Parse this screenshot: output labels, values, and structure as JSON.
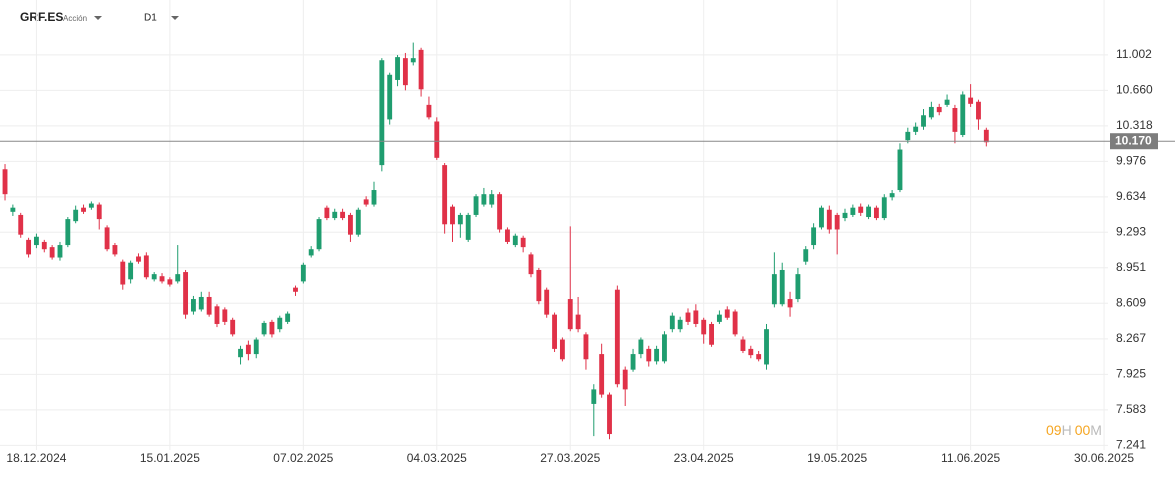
{
  "header": {
    "symbol": "GRF.ES",
    "kind": "Acción",
    "timeframe": "D1"
  },
  "countdown": {
    "hours": "09",
    "h": "H",
    "minutes": "00",
    "m": "M"
  },
  "chart_data": {
    "type": "candlestick",
    "up_color": "#1f9d6f",
    "down_color": "#e03148",
    "grid": true,
    "open": [
      9.9,
      9.49,
      9.46,
      9.22,
      9.17,
      9.2,
      9.15,
      9.05,
      9.17,
      9.4,
      9.53,
      9.53,
      9.56,
      9.34,
      9.17,
      9.01,
      8.84,
      9.06,
      9.07,
      8.84,
      8.87,
      8.84,
      8.82,
      8.91,
      8.53,
      8.55,
      8.67,
      8.58,
      8.55,
      8.45,
      8.09,
      8.21,
      8.12,
      8.31,
      8.43,
      8.36,
      8.43,
      8.76,
      8.82,
      9.07,
      9.13,
      9.53,
      9.43,
      9.49,
      9.46,
      9.27,
      9.61,
      9.56,
      9.94,
      10.38,
      10.76,
      10.97,
      10.93,
      11.05,
      10.52,
      10.36,
      9.94,
      9.54,
      9.37,
      9.22,
      9.46,
      9.56,
      9.56,
      9.66,
      9.32,
      9.17,
      9.24,
      9.08,
      8.93,
      8.74,
      8.5,
      8.26,
      8.65,
      8.5,
      8.31,
      7.64,
      8.12,
      7.73,
      8.74,
      7.97,
      7.97,
      8.12,
      8.17,
      8.05,
      8.05,
      8.36,
      8.36,
      8.52,
      8.54,
      8.45,
      8.41,
      8.43,
      8.55,
      8.53,
      8.26,
      8.17,
      8.12,
      8.02,
      8.6,
      8.6,
      8.65,
      8.65,
      9.01,
      9.17,
      9.34,
      9.51,
      9.46,
      9.43,
      9.46,
      9.54,
      9.44,
      9.53,
      9.43,
      9.63,
      9.7,
      10.18,
      10.26,
      10.31,
      10.4,
      10.5,
      10.52,
      10.49,
      10.23,
      10.59,
      10.55,
      10.28
    ],
    "high": [
      9.95,
      9.56,
      9.48,
      9.24,
      9.28,
      9.22,
      9.17,
      9.2,
      9.44,
      9.55,
      9.56,
      9.59,
      9.58,
      9.36,
      9.19,
      9.03,
      9.02,
      9.09,
      9.1,
      8.91,
      8.9,
      8.86,
      9.17,
      8.93,
      8.68,
      8.72,
      8.72,
      8.6,
      8.57,
      8.47,
      8.2,
      8.25,
      8.28,
      8.44,
      8.45,
      8.49,
      8.53,
      8.78,
      9.0,
      9.16,
      9.44,
      9.55,
      9.52,
      9.52,
      9.48,
      9.53,
      9.64,
      9.78,
      10.97,
      10.83,
      11.0,
      11.02,
      11.12,
      11.07,
      10.6,
      10.4,
      9.96,
      9.56,
      9.48,
      9.48,
      9.66,
      9.72,
      9.7,
      9.68,
      9.34,
      9.28,
      9.26,
      9.1,
      8.95,
      8.76,
      8.52,
      8.28,
      9.35,
      8.67,
      8.33,
      7.83,
      8.22,
      7.75,
      8.78,
      8.0,
      8.17,
      8.28,
      8.2,
      8.2,
      8.34,
      8.52,
      8.48,
      8.56,
      8.6,
      8.47,
      8.43,
      8.54,
      8.58,
      8.55,
      8.29,
      8.2,
      8.15,
      8.41,
      9.1,
      9.0,
      8.72,
      8.95,
      9.16,
      9.38,
      9.55,
      9.55,
      9.48,
      9.52,
      9.56,
      9.57,
      9.56,
      9.55,
      9.66,
      9.7,
      10.15,
      10.3,
      10.35,
      10.48,
      10.55,
      10.53,
      10.62,
      10.52,
      10.65,
      10.72,
      10.57,
      10.3
    ],
    "low": [
      9.6,
      9.45,
      9.24,
      9.05,
      9.14,
      9.1,
      9.03,
      9.02,
      9.15,
      9.38,
      9.47,
      9.51,
      9.32,
      9.11,
      9.06,
      8.74,
      8.8,
      8.99,
      8.84,
      8.82,
      8.8,
      8.77,
      8.8,
      8.46,
      8.5,
      8.53,
      8.48,
      8.38,
      8.4,
      8.29,
      8.02,
      8.06,
      8.08,
      8.29,
      8.28,
      8.33,
      8.41,
      8.68,
      8.8,
      9.05,
      9.11,
      9.41,
      9.41,
      9.41,
      9.2,
      9.25,
      9.54,
      9.54,
      9.88,
      10.33,
      10.7,
      10.66,
      10.9,
      10.6,
      10.38,
      9.99,
      9.28,
      9.2,
      9.24,
      9.2,
      9.44,
      9.54,
      9.53,
      9.29,
      9.18,
      9.15,
      9.1,
      8.86,
      8.6,
      8.47,
      8.14,
      8.05,
      8.34,
      8.33,
      7.97,
      7.33,
      7.7,
      7.3,
      7.8,
      7.62,
      7.95,
      8.08,
      8.0,
      8.02,
      8.03,
      8.33,
      8.33,
      8.4,
      8.38,
      8.22,
      8.19,
      8.41,
      8.45,
      8.29,
      8.13,
      8.08,
      8.05,
      7.97,
      8.57,
      8.58,
      8.48,
      8.62,
      8.98,
      9.13,
      9.32,
      9.28,
      9.08,
      9.4,
      9.44,
      9.45,
      9.42,
      9.41,
      9.41,
      9.6,
      9.68,
      10.15,
      10.23,
      10.28,
      10.38,
      10.42,
      10.5,
      10.15,
      10.21,
      10.5,
      10.28,
      10.12
    ],
    "close": [
      9.66,
      9.53,
      9.27,
      9.08,
      9.25,
      9.13,
      9.05,
      9.17,
      9.42,
      9.51,
      9.49,
      9.57,
      9.42,
      9.13,
      9.08,
      8.79,
      9.0,
      9.01,
      8.86,
      8.89,
      8.82,
      8.79,
      8.89,
      8.5,
      8.65,
      8.67,
      8.5,
      8.41,
      8.43,
      8.31,
      8.17,
      8.12,
      8.26,
      8.42,
      8.31,
      8.47,
      8.51,
      8.72,
      8.98,
      9.13,
      9.42,
      9.43,
      9.49,
      9.43,
      9.27,
      9.51,
      9.56,
      9.7,
      10.95,
      10.81,
      10.98,
      10.71,
      10.97,
      10.67,
      10.4,
      10.01,
      9.37,
      9.37,
      9.46,
      9.46,
      9.64,
      9.66,
      9.66,
      9.32,
      9.2,
      9.26,
      9.15,
      8.89,
      8.63,
      8.5,
      8.17,
      8.07,
      8.36,
      8.36,
      8.07,
      7.78,
      7.73,
      7.35,
      7.83,
      7.78,
      8.12,
      8.26,
      8.05,
      8.17,
      8.31,
      8.49,
      8.45,
      8.43,
      8.41,
      8.31,
      8.21,
      8.5,
      8.47,
      8.31,
      8.15,
      8.11,
      8.07,
      8.36,
      8.89,
      8.93,
      8.57,
      8.89,
      9.13,
      9.34,
      9.53,
      9.32,
      9.32,
      9.48,
      9.53,
      9.48,
      9.54,
      9.43,
      9.63,
      9.67,
      10.09,
      10.26,
      10.31,
      10.42,
      10.5,
      10.45,
      10.57,
      10.26,
      10.62,
      10.53,
      10.38,
      10.16
    ],
    "xlim": [
      -0.64,
      140.5
    ],
    "xticks": [
      {
        "value": 4,
        "label": "18.12.2024"
      },
      {
        "value": 21,
        "label": "15.01.2025"
      },
      {
        "value": 38,
        "label": "07.02.2025"
      },
      {
        "value": 55,
        "label": "04.03.2025"
      },
      {
        "value": 72,
        "label": "27.03.2025"
      },
      {
        "value": 89,
        "label": "23.04.2025"
      },
      {
        "value": 106,
        "label": "19.05.2025"
      },
      {
        "value": 123,
        "label": "11.06.2025"
      },
      {
        "value": 140,
        "label": "30.06.2025"
      }
    ],
    "ylim": [
      7.1,
      11.53
    ],
    "yticks": [
      7.241,
      7.583,
      7.925,
      8.267,
      8.609,
      8.951,
      9.293,
      9.634,
      9.976,
      10.318,
      {
        "value": 10.66,
        "label": "10.660"
      },
      11.002
    ],
    "current_price": {
      "value": 10.17,
      "label": "10.170"
    }
  }
}
